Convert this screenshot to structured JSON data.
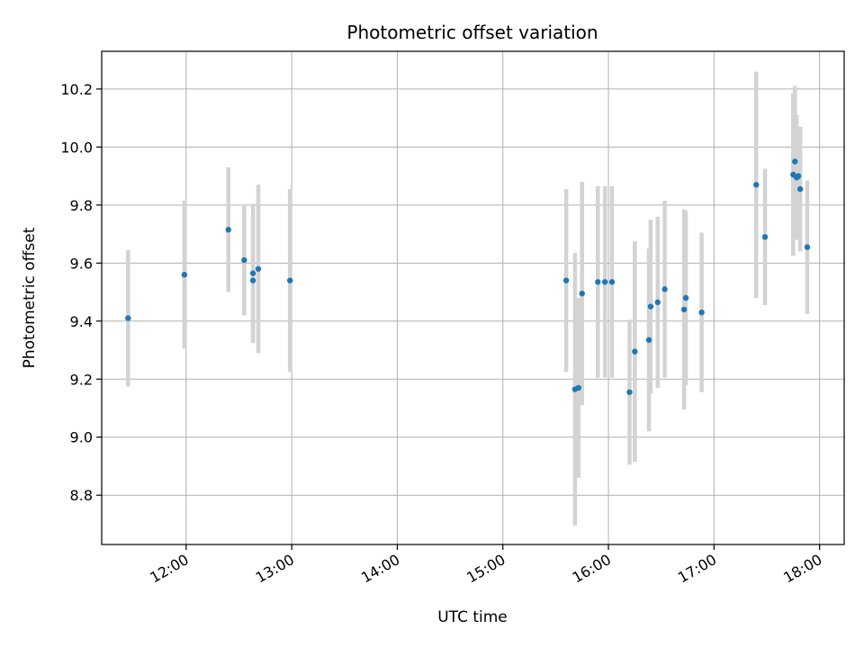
{
  "chart_data": {
    "type": "scatter",
    "title": "Photometric offset variation",
    "xlabel": "UTC time",
    "ylabel": "Photometric offset",
    "xlim": [
      "11:12",
      "18:14"
    ],
    "ylim": [
      8.63,
      10.33
    ],
    "xticks": [
      "12:00",
      "13:00",
      "14:00",
      "15:00",
      "16:00",
      "17:00",
      "18:00"
    ],
    "yticks": [
      8.8,
      9.0,
      9.2,
      9.4,
      9.6,
      9.8,
      10.0,
      10.2
    ],
    "grid": true,
    "colors": {
      "marker": "#1f77b4",
      "errorbar": "#d3d3d3",
      "grid": "#b0b0b0"
    },
    "points": [
      {
        "t": "11:27",
        "y": 9.41,
        "yerr": 0.235
      },
      {
        "t": "11:59",
        "y": 9.56,
        "yerr": 0.255
      },
      {
        "t": "12:24",
        "y": 9.715,
        "yerr": 0.215
      },
      {
        "t": "12:33",
        "y": 9.61,
        "yerr": 0.19
      },
      {
        "t": "12:38",
        "y": 9.565,
        "yerr": 0.24
      },
      {
        "t": "12:38",
        "y": 9.54,
        "yerr": 0.21
      },
      {
        "t": "12:41",
        "y": 9.58,
        "yerr": 0.29
      },
      {
        "t": "12:59",
        "y": 9.54,
        "yerr": 0.315
      },
      {
        "t": "15:36",
        "y": 9.54,
        "yerr": 0.315
      },
      {
        "t": "15:41",
        "y": 9.165,
        "yerr": 0.47
      },
      {
        "t": "15:43",
        "y": 9.17,
        "yerr": 0.31
      },
      {
        "t": "15:45",
        "y": 9.495,
        "yerr": 0.385
      },
      {
        "t": "15:54",
        "y": 9.535,
        "yerr": 0.33
      },
      {
        "t": "15:58",
        "y": 9.535,
        "yerr": 0.33
      },
      {
        "t": "16:02",
        "y": 9.535,
        "yerr": 0.33
      },
      {
        "t": "16:12",
        "y": 9.155,
        "yerr": 0.25
      },
      {
        "t": "16:15",
        "y": 9.295,
        "yerr": 0.38
      },
      {
        "t": "16:23",
        "y": 9.335,
        "yerr": 0.315
      },
      {
        "t": "16:24",
        "y": 9.45,
        "yerr": 0.3
      },
      {
        "t": "16:28",
        "y": 9.465,
        "yerr": 0.295
      },
      {
        "t": "16:32",
        "y": 9.51,
        "yerr": 0.305
      },
      {
        "t": "16:43",
        "y": 9.44,
        "yerr": 0.345
      },
      {
        "t": "16:44",
        "y": 9.48,
        "yerr": 0.3
      },
      {
        "t": "16:53",
        "y": 9.43,
        "yerr": 0.275
      },
      {
        "t": "17:24",
        "y": 9.87,
        "yerr": 0.39
      },
      {
        "t": "17:29",
        "y": 9.69,
        "yerr": 0.235
      },
      {
        "t": "17:45",
        "y": 9.905,
        "yerr": 0.28
      },
      {
        "t": "17:46",
        "y": 9.95,
        "yerr": 0.26
      },
      {
        "t": "17:47",
        "y": 9.895,
        "yerr": 0.215
      },
      {
        "t": "17:48",
        "y": 9.9,
        "yerr": 0.17
      },
      {
        "t": "17:49",
        "y": 9.855,
        "yerr": 0.215
      },
      {
        "t": "17:53",
        "y": 9.655,
        "yerr": 0.23
      }
    ]
  }
}
